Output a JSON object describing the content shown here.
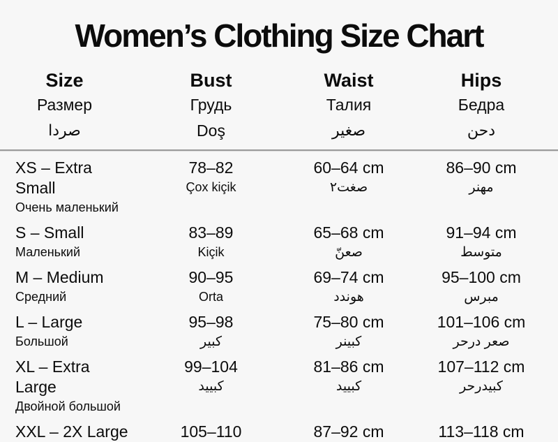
{
  "meta": {
    "background": "#f7f7f7",
    "text_color": "#0c0c0c",
    "divider_color": "#9b9b9b"
  },
  "title": "Women’s Clothing Size Chart",
  "table": {
    "headers": [
      {
        "l1": "Size",
        "l2": "Размер",
        "l3": "صردا"
      },
      {
        "l1": "Bust",
        "l2": "Грудь",
        "l3": "Doş"
      },
      {
        "l1": "Waist",
        "l2": "Талия",
        "l3": "صغير"
      },
      {
        "l1": "Hips",
        "l2": "Бедра",
        "l3": "دحن"
      }
    ],
    "rows": [
      {
        "size": "XS – Extra Small",
        "size_sub": "Очень маленький",
        "bust": "78–82",
        "bust_sub": "Çox kiçik",
        "waist": "60–64 cm",
        "waist_sub": "صغت٢",
        "hips": "86–90 cm",
        "hips_sub": "مهنر"
      },
      {
        "size": "S – Small",
        "size_sub": "Маленький",
        "bust": "83–89",
        "bust_sub": "Kiçik",
        "waist": "65–68 cm",
        "waist_sub": "صعنّ",
        "hips": "91–94 cm",
        "hips_sub": "متوسط"
      },
      {
        "size": "M – Medium",
        "size_sub": "Средний",
        "bust": "90–95",
        "bust_sub": "Orta",
        "waist": "69–74 cm",
        "waist_sub": "هوندد",
        "hips": "95–100 cm",
        "hips_sub": "مبرس"
      },
      {
        "size": "L – Large",
        "size_sub": "Большой",
        "bust": "95–98",
        "bust_sub": "كبير",
        "waist": "75–80 cm",
        "waist_sub": "كبينر",
        "hips": "101–106 cm",
        "hips_sub": "صعر درحر"
      },
      {
        "size": "XL – Extra Large",
        "size_sub": "Двойной большой",
        "bust": "99–104",
        "bust_sub": "كبييد",
        "waist": "81–86 cm",
        "waist_sub": "كبييد",
        "hips": "107–112 cm",
        "hips_sub": "كبيدرحر"
      },
      {
        "size": "XXL – 2X Large",
        "bust": "105–110",
        "waist": "87–92 cm",
        "hips": "113–118 cm"
      }
    ]
  }
}
